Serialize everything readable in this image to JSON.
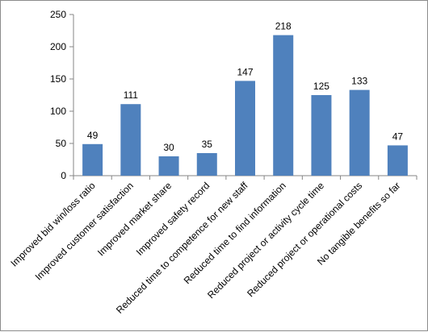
{
  "chart_data": {
    "type": "bar",
    "categories": [
      "Improved bid win/loss ratio",
      "Improved customer satisfaction",
      "Improved market share",
      "Improved safety record",
      "Reduced time to competence for new staff",
      "Reduced time to find information",
      "Reduced project or activity cycle time",
      "Reduced project or operational costs",
      "No tangible benefits so far"
    ],
    "values": [
      49,
      111,
      30,
      35,
      147,
      218,
      125,
      133,
      47
    ],
    "data_labels": [
      "49",
      "111",
      "30",
      "35",
      "147",
      "218",
      "125",
      "133",
      "47"
    ],
    "ylim": [
      0,
      250
    ],
    "yticks": [
      0,
      50,
      100,
      150,
      200,
      250
    ],
    "ytick_labels": [
      "0",
      "50",
      "100",
      "150",
      "200",
      "250"
    ],
    "bar_color": "#4f81bd",
    "grid": false,
    "legend": "none"
  }
}
